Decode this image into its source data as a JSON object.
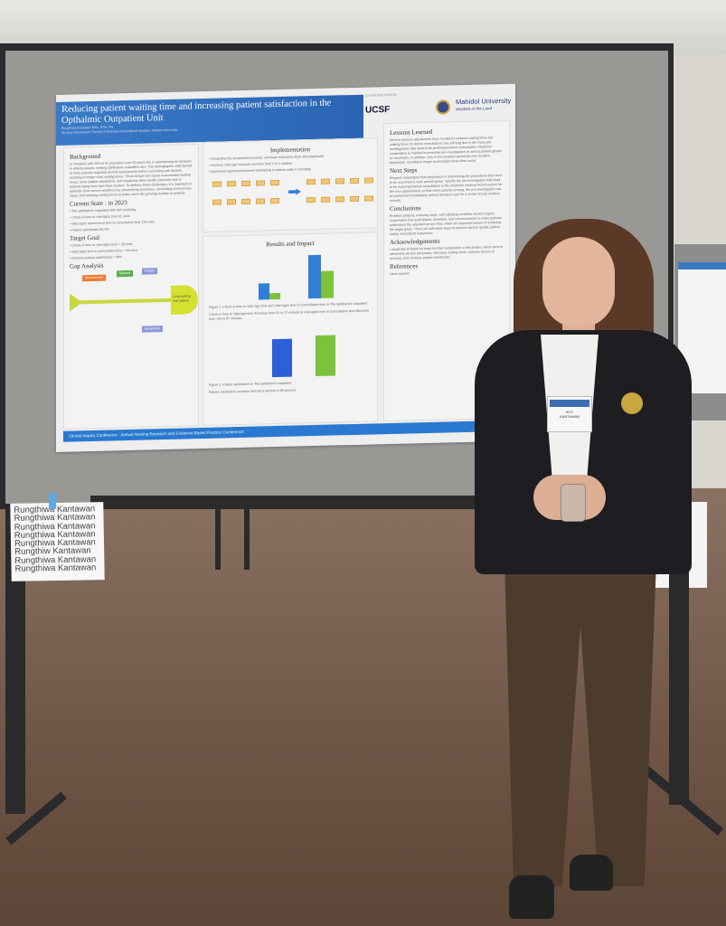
{
  "poster": {
    "title": "Reducing patient waiting time and increasing patient satisfaction in the Opthalmic Outpatient Unit",
    "authors": "Rungthiwa Kantawan MSc, BSN, RN",
    "affiliation": "Nursing Department, Faculty of Medicine Ramathibodi Hospital, Mahidol University",
    "logos": {
      "leadership": "Leadership Institute",
      "ucsf": "UCSF",
      "mahidol": "Mahidol University",
      "mahidol_tagline": "Wisdom of the Land"
    },
    "background": {
      "heading": "Background",
      "text": "In Thailand, with 20% of its population over 60 years old, is experiencing an increase in elderly patients seeking ophthalmic outpatient care. This demographic shift has led to more patients requiring several assessments before consulting with doctors, resulting in longer clinic waiting times. These delays can cause overcrowded waiting areas, lower patient satisfaction, and negatively affect health outcomes due to patients being seen later than needed. To address these challenges, it is important to optimize clinic service workflows by streamlining processes, eliminating unnecessary steps, and reducing waiting times to better serve the growing number of patients."
    },
    "current_state": {
      "heading": "Current State : in 2023",
      "items": [
        "The ophthalmic outpatient 500-600 visits/day",
        "Check-in time to vital signs time 51 mins.",
        "Vital signs assessment time to consultation time 139 mins",
        "Patient satisfaction 85.9%"
      ]
    },
    "target_goal": {
      "heading": "Target Goal",
      "items": [
        "Check-in time to vital signs time < 30 mins.",
        "Vital signs time to consultation time < 90 mins.",
        "Increase patient satisfaction > 90%"
      ]
    },
    "gap_analysis": {
      "heading": "Gap Analysis",
      "effect": "Long waiting time patient",
      "categories": [
        "Environment",
        "Method",
        "People",
        "Equipment"
      ]
    },
    "implementation": {
      "heading": "Implementation",
      "items": [
        "Streamline the assessment process: eliminate redundant steps and paperwork",
        "Increase vital sign measure monitors from 2 to 3 stations",
        "Implement appointment-based scheduling to reduce walk-in crowding"
      ]
    },
    "results": {
      "heading": "Results and Impact",
      "figure1_caption": "Figure 1. Check-in time to Vital sign time and Vital signs time to Consultation time in The ophthalmic outpatient",
      "figure1_note": "Check-in time to Vital sign time decrease from 51 to 17 minutes & vital signs time to Consultation time decrease from 139 to 87 minutes",
      "figure2_caption": "Figure 2. Patient satisfaction in The ophthalmic outpatient",
      "figure2_note": "Patient satisfaction increase form 85.9 percent to 89 percent",
      "colors": {
        "before": "#2f7fd6",
        "after": "#7cc23a"
      }
    },
    "lessons": {
      "heading": "Lessons Learned",
      "text": "Service process adjustments have resulted in reduced waiting times but waiting times for doctor consultations are still long due to the many pre-investigations that need to be performed before consultation. Physician cooperation is required to prescribe pre-investigation to various patient groups as necessary. In addition, July is the transition period for new resident physicians, resulting in longer examination times than usual."
    },
    "next_steps": {
      "heading": "Next Steps",
      "text": "Request cooperation from physicians in determining the procedures that need to be examined in each patient group. Specify the pre-investigation that need to be examined before consultation in the electronic medical record system for the next appointment, so that when patients arriving, the pre-investigation can be performed immediately without having to wait for a review of past medical records."
    },
    "conclusions": {
      "heading": "Conclusions",
      "text": "Problem analysis, reducing steps, and adjusting workflow service require cooperation from participants, providers, and communication to make patients understand the adjusted service flow, which are important factors in achieving the target goals. There are still many steps to improve service quality, patient safety, and patient experience."
    },
    "acknowledgements": {
      "heading": "Acknowledgements",
      "text": "I would like to thank my team for their cooperation in this project, which aims to streamline service processes, decrease waiting times, improve access to services, and increase patient satisfaction."
    },
    "references": {
      "heading": "References",
      "text": "Upon request"
    },
    "footer": "Clinical Inquiry Conference - Annual Nursing Research and Evidence-Based Practice Conference"
  },
  "name_card": [
    "Rungthiwa Kantawan",
    "Rungthiwa Kantawan",
    "Rungthiwa Kantawan",
    "Rungthiwa Kantawan",
    "Rungthiwa Kantawan",
    "Rungthiw  Kantawan",
    "Rungthiwa Kantawan",
    "Rungthiwa Kantawan"
  ],
  "badge": {
    "name": "KOY",
    "surname": "KANTAWAN"
  }
}
